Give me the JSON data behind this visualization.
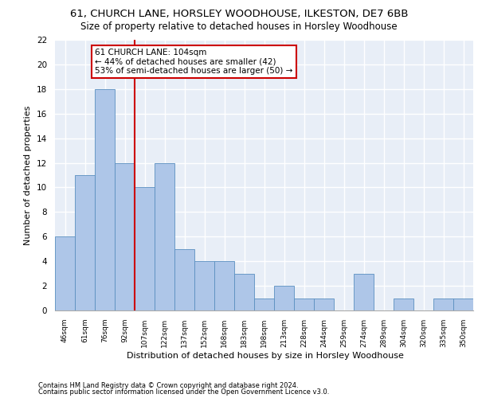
{
  "title1": "61, CHURCH LANE, HORSLEY WOODHOUSE, ILKESTON, DE7 6BB",
  "title2": "Size of property relative to detached houses in Horsley Woodhouse",
  "xlabel": "Distribution of detached houses by size in Horsley Woodhouse",
  "ylabel": "Number of detached properties",
  "footnote1": "Contains HM Land Registry data © Crown copyright and database right 2024.",
  "footnote2": "Contains public sector information licensed under the Open Government Licence v3.0.",
  "categories": [
    "46sqm",
    "61sqm",
    "76sqm",
    "92sqm",
    "107sqm",
    "122sqm",
    "137sqm",
    "152sqm",
    "168sqm",
    "183sqm",
    "198sqm",
    "213sqm",
    "228sqm",
    "244sqm",
    "259sqm",
    "274sqm",
    "289sqm",
    "304sqm",
    "320sqm",
    "335sqm",
    "350sqm"
  ],
  "values": [
    6,
    11,
    18,
    12,
    10,
    12,
    5,
    4,
    4,
    3,
    1,
    2,
    1,
    1,
    0,
    3,
    0,
    1,
    0,
    1,
    1
  ],
  "bar_color": "#aec6e8",
  "bar_edge_color": "#5a8fc0",
  "annotation_text": "61 CHURCH LANE: 104sqm\n← 44% of detached houses are smaller (42)\n53% of semi-detached houses are larger (50) →",
  "annotation_box_color": "#ffffff",
  "annotation_box_edge_color": "#cc0000",
  "ylim": [
    0,
    22
  ],
  "yticks": [
    0,
    2,
    4,
    6,
    8,
    10,
    12,
    14,
    16,
    18,
    20,
    22
  ],
  "bg_color": "#e8eef7",
  "grid_color": "#ffffff",
  "vline_color": "#cc0000",
  "title1_fontsize": 9.5,
  "title2_fontsize": 8.5,
  "xlabel_fontsize": 8,
  "ylabel_fontsize": 8,
  "footnote_fontsize": 6,
  "annot_fontsize": 7.5
}
